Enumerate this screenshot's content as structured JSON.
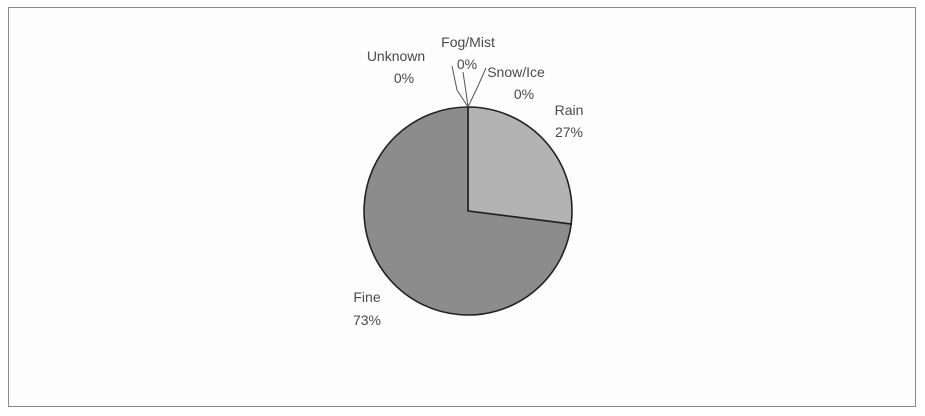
{
  "chart_data": {
    "type": "pie",
    "title": "",
    "slices": [
      {
        "label": "Rain",
        "value": 27,
        "display": "27%",
        "color": "#b3b3b3"
      },
      {
        "label": "Fine",
        "value": 73,
        "display": "73%",
        "color": "#8c8c8c"
      },
      {
        "label": "Unknown",
        "value": 0,
        "display": "0%",
        "color": "#9a9a9a"
      },
      {
        "label": "Fog/Mist",
        "value": 0,
        "display": "0%",
        "color": "#a5a5a5"
      },
      {
        "label": "Snow/Ice",
        "value": 0,
        "display": "0%",
        "color": "#c2c2c2"
      }
    ],
    "legend": "none",
    "labels_on_chart": true
  }
}
